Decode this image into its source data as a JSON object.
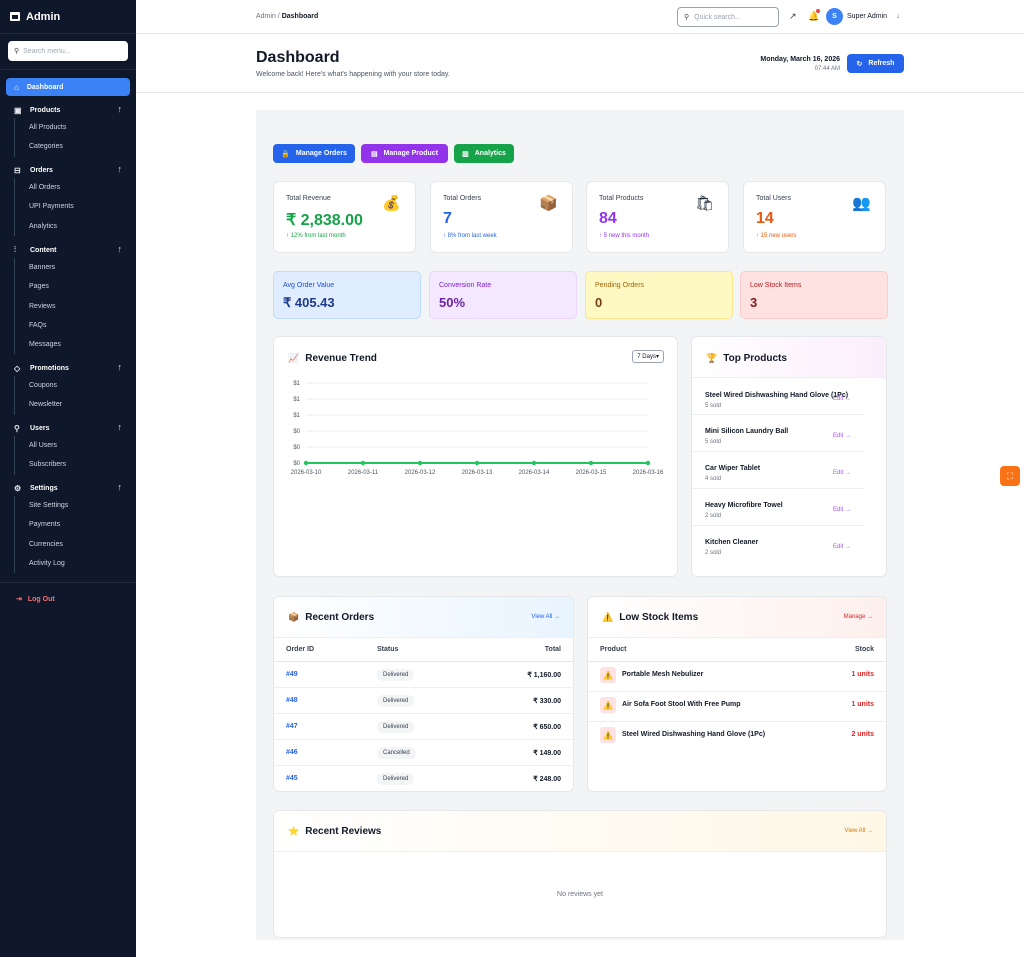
{
  "sidebar": {
    "brand": "Admin",
    "search_placeholder": "Search menu...",
    "active": "Dashboard",
    "groups": [
      {
        "label": "Products",
        "icon": "archive-icon",
        "items": [
          "All Products",
          "Categories"
        ]
      },
      {
        "label": "Orders",
        "icon": "bag-icon",
        "items": [
          "All Orders",
          "UPI Payments",
          "Analytics"
        ]
      },
      {
        "label": "Content",
        "icon": "sliders-icon",
        "items": [
          "Banners",
          "Pages",
          "Reviews",
          "FAQs",
          "Messages"
        ]
      },
      {
        "label": "Promotions",
        "icon": "tag-icon",
        "items": [
          "Coupons",
          "Newsletter"
        ]
      },
      {
        "label": "Users",
        "icon": "user-icon",
        "items": [
          "All Users",
          "Subscribers"
        ]
      },
      {
        "label": "Settings",
        "icon": "gear-icon",
        "items": [
          "Site Settings",
          "Payments",
          "Currencies",
          "Activity Log"
        ]
      }
    ],
    "logout": "Log Out"
  },
  "topbar": {
    "crumb_root": "Admin",
    "crumb_sep": "/",
    "crumb_current": "Dashboard",
    "search_placeholder": "Quick search...",
    "avatar_initial": "S",
    "user_name": "Super Admin"
  },
  "header": {
    "title": "Dashboard",
    "subtitle": "Welcome back! Here's what's happening with your store today.",
    "date": "Monday, March 16, 2026",
    "time": "07:44 AM",
    "refresh": "Refresh"
  },
  "quick_actions": [
    "Manage Orders",
    "Manage Product",
    "Analytics"
  ],
  "stats": [
    {
      "label": "Total Revenue",
      "value": "₹ 2,838.00",
      "change": "↑ 12% from last month",
      "icon": "money-bag-icon",
      "color": "#16a34a"
    },
    {
      "label": "Total Orders",
      "value": "7",
      "change": "↑ 8% from last week",
      "icon": "package-icon",
      "color": "#2563eb"
    },
    {
      "label": "Total Products",
      "value": "84",
      "change": "↑ 5 new this month",
      "icon": "shopping-bag-icon",
      "color": "#9333ea"
    },
    {
      "label": "Total Users",
      "value": "14",
      "change": "↑ 15 new users",
      "icon": "users-icon",
      "color": "#ea580c"
    }
  ],
  "metrics": [
    {
      "label": "Avg Order Value",
      "value": "₹ 405.43"
    },
    {
      "label": "Conversion Rate",
      "value": "50%"
    },
    {
      "label": "Pending Orders",
      "value": "0"
    },
    {
      "label": "Low Stock Items",
      "value": "3"
    }
  ],
  "revenue_trend": {
    "title": "Revenue Trend",
    "range": "7 Days"
  },
  "chart_data": {
    "type": "line",
    "title": "Revenue Trend",
    "x": [
      "2026-03-10",
      "2026-03-11",
      "2026-03-12",
      "2026-03-13",
      "2026-03-14",
      "2026-03-15",
      "2026-03-16"
    ],
    "series": [
      {
        "values": [
          0,
          0,
          0,
          0,
          0,
          0,
          0
        ]
      }
    ],
    "yticks": [
      "$1",
      "$1",
      "$1",
      "$0",
      "$0",
      "$0"
    ],
    "color": "#22c55e"
  },
  "top_products": {
    "title": "Top Products",
    "edit": "Edit →",
    "items": [
      {
        "name": "Steel Wired Dishwashing Hand Glove (1Pc)",
        "sold": "5 sold"
      },
      {
        "name": "Mini Silicon Laundry Ball",
        "sold": "5 sold"
      },
      {
        "name": "Car Wiper Tablet",
        "sold": "4 sold"
      },
      {
        "name": "Heavy Microfibre Towel",
        "sold": "2 sold"
      },
      {
        "name": "Kitchen Cleaner",
        "sold": "2 sold"
      }
    ]
  },
  "recent_orders": {
    "title": "Recent Orders",
    "view_all": "View All →",
    "headers": [
      "Order ID",
      "Status",
      "Total"
    ],
    "rows": [
      {
        "id": "#49",
        "status": "Delivered",
        "total": "₹ 1,160.00"
      },
      {
        "id": "#48",
        "status": "Delivered",
        "total": "₹ 330.00"
      },
      {
        "id": "#47",
        "status": "Delivered",
        "total": "₹ 650.00"
      },
      {
        "id": "#46",
        "status": "Cancelled",
        "total": "₹ 149.00"
      },
      {
        "id": "#45",
        "status": "Delivered",
        "total": "₹ 248.00"
      }
    ]
  },
  "low_stock": {
    "title": "Low Stock Items",
    "manage": "Manage →",
    "headers": [
      "Product",
      "Stock"
    ],
    "rows": [
      {
        "name": "Portable Mesh Nebulizer",
        "stock": "1 units"
      },
      {
        "name": "Air Sofa Foot Stool With Free Pump",
        "stock": "1 units"
      },
      {
        "name": "Steel Wired Dishwashing Hand Glove (1Pc)",
        "stock": "2 units"
      }
    ]
  },
  "recent_reviews": {
    "title": "Recent Reviews",
    "view_all": "View All →",
    "empty": "No reviews yet"
  }
}
